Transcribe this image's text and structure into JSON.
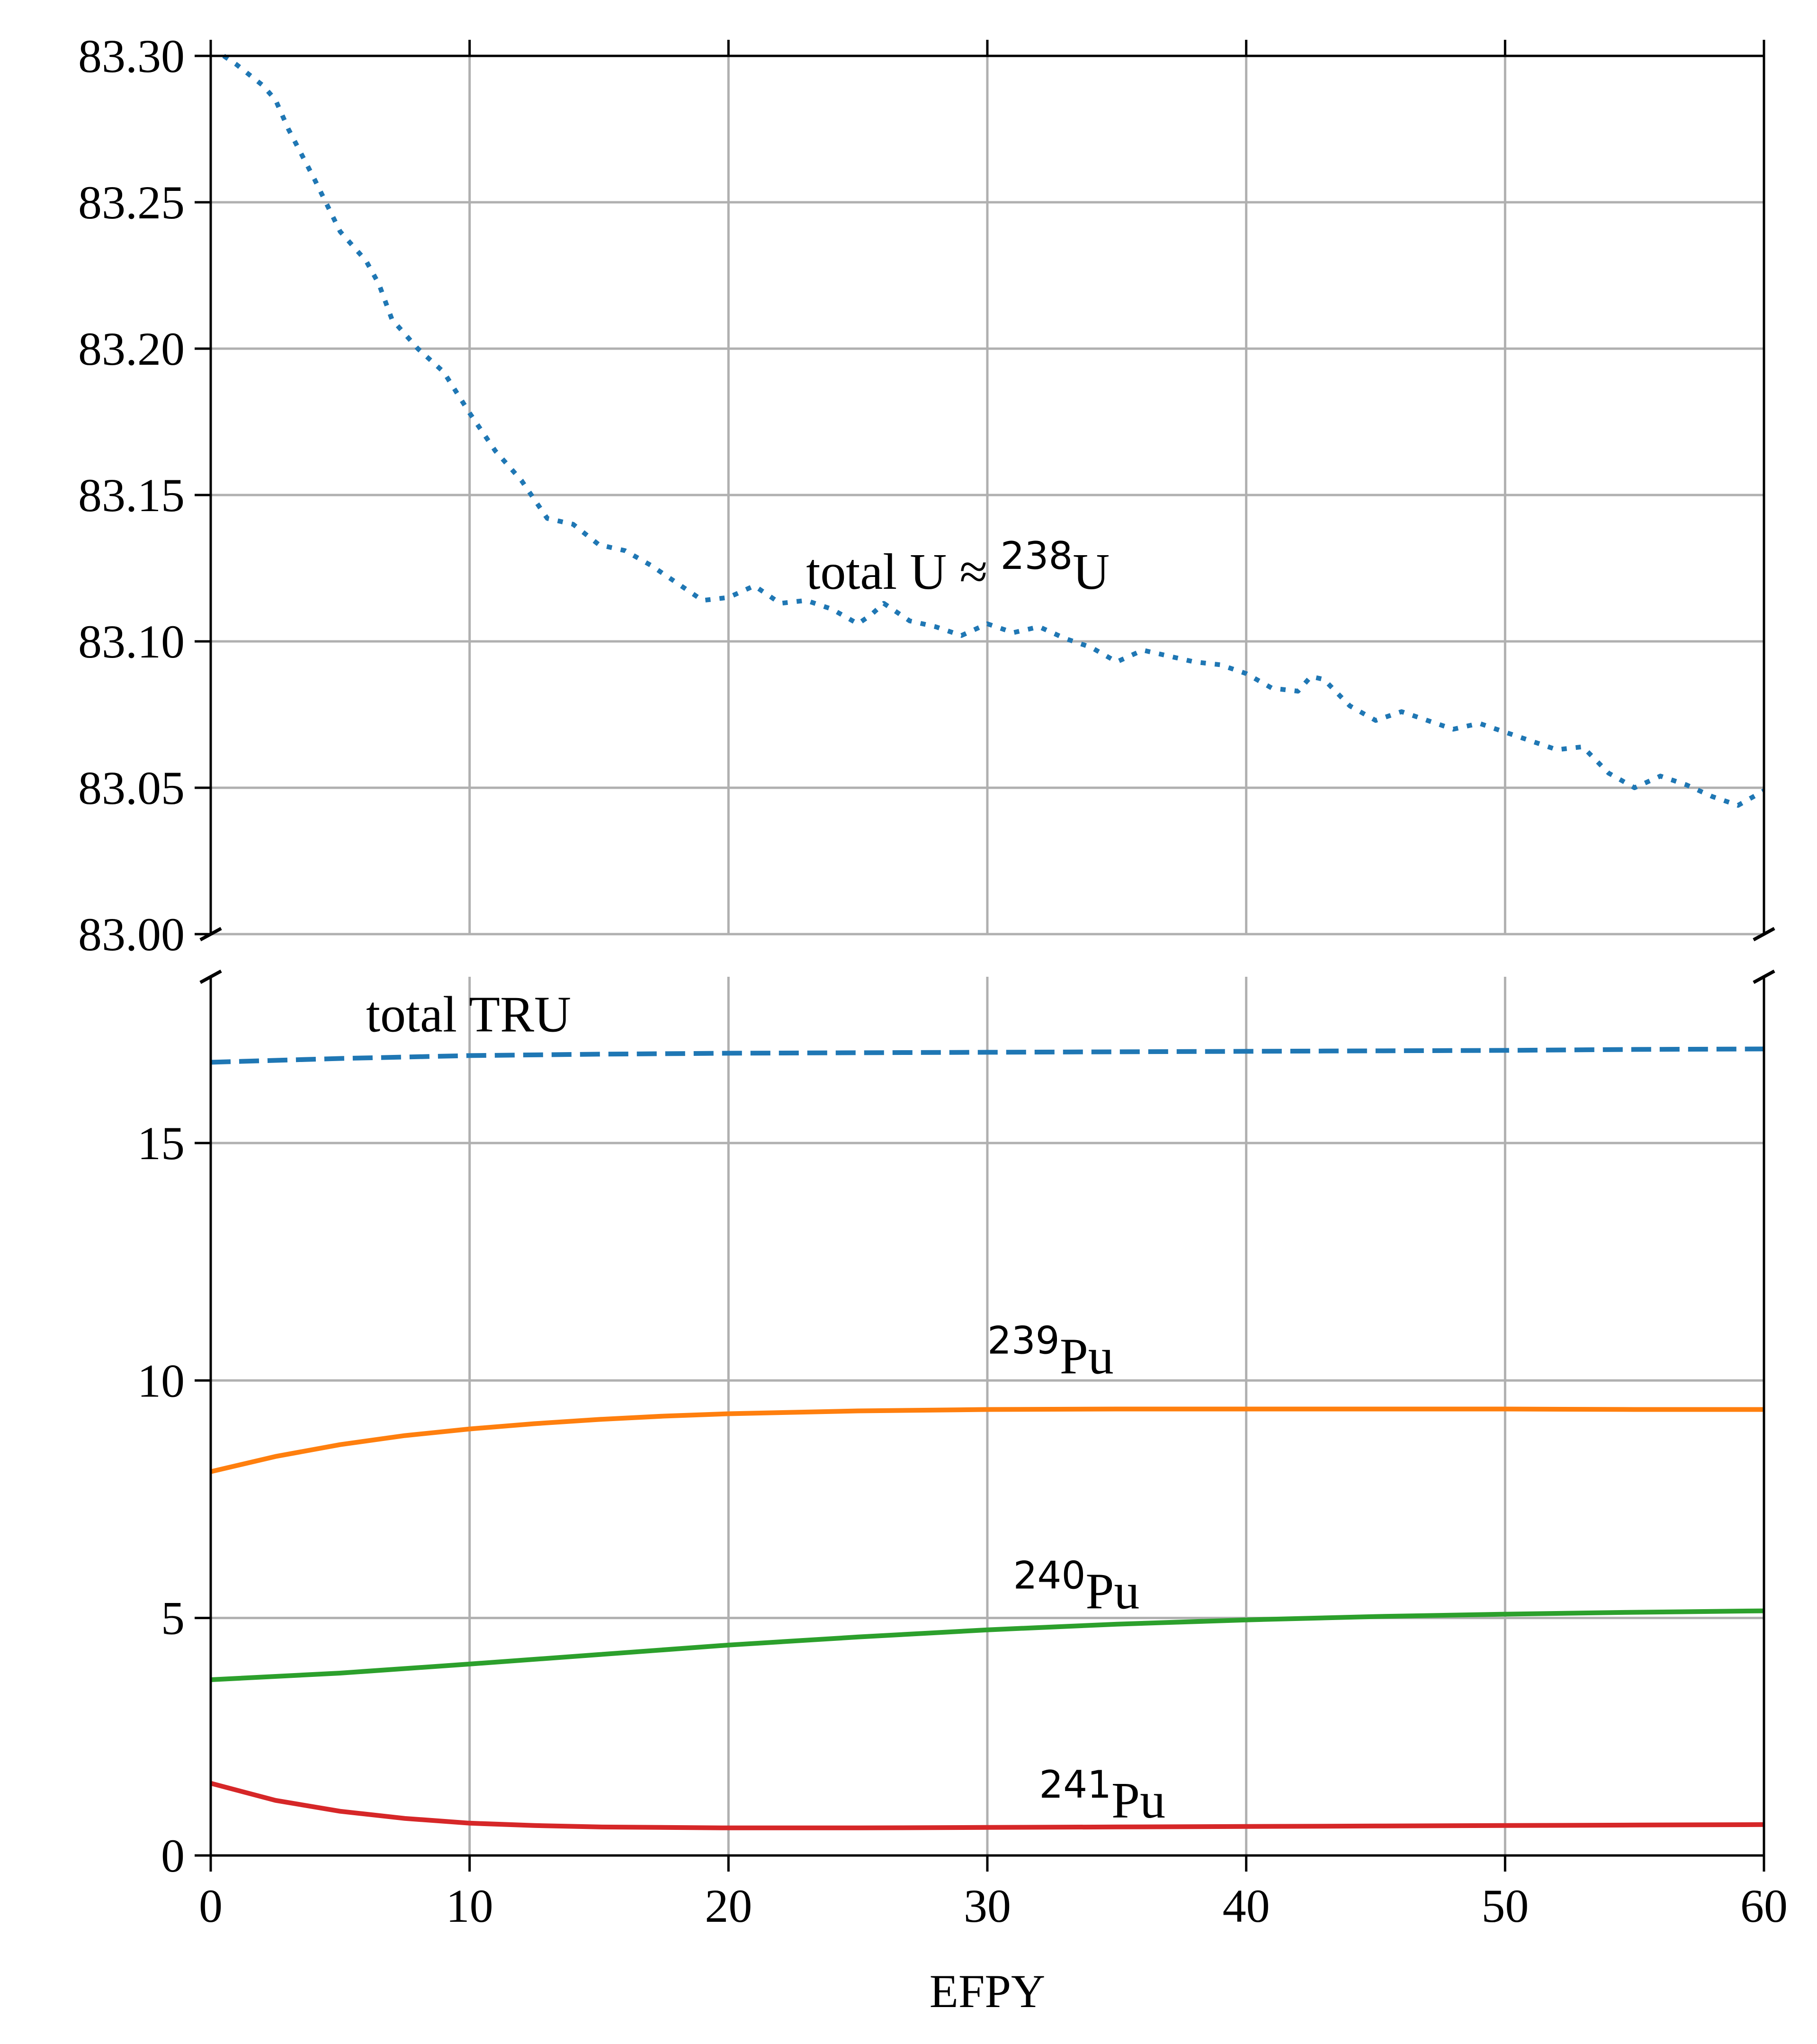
{
  "chart_data": [
    {
      "type": "line",
      "panel": "top",
      "xlabel": "",
      "ylabel": "",
      "xlim": [
        0,
        60
      ],
      "ylim": [
        83.0,
        83.3
      ],
      "grid": true,
      "yticks": [
        "83.00",
        "83.05",
        "83.10",
        "83.15",
        "83.20",
        "83.25",
        "83.30"
      ],
      "series": [
        {
          "name": "total U ≈ ²³⁸U",
          "label_main": "total U ≈ ",
          "label_sup": "238",
          "label_tail": "U",
          "label_at": [
            23,
            83.118
          ],
          "style": "dotted",
          "color": "#1f77b4",
          "x": [
            0.5,
            1,
            2,
            2.5,
            3,
            4,
            5,
            6,
            6.5,
            7,
            8,
            9,
            10,
            11,
            12,
            13,
            14,
            15,
            16,
            17,
            18,
            19,
            20,
            21,
            22,
            23,
            24,
            25,
            25.5,
            26,
            27,
            28,
            29,
            30,
            31,
            32,
            33,
            34,
            35,
            36,
            37,
            38,
            39,
            40,
            41,
            42,
            42.5,
            43,
            44,
            45,
            46,
            47,
            48,
            49,
            50,
            51,
            52,
            53,
            54,
            55,
            56,
            57,
            58,
            59,
            60
          ],
          "y": [
            83.3,
            83.297,
            83.29,
            83.285,
            83.275,
            83.258,
            83.24,
            83.23,
            83.222,
            83.21,
            83.2,
            83.192,
            83.178,
            83.165,
            83.155,
            83.142,
            83.14,
            83.133,
            83.131,
            83.126,
            83.12,
            83.114,
            83.115,
            83.119,
            83.113,
            83.114,
            83.111,
            83.106,
            83.109,
            83.113,
            83.107,
            83.105,
            83.102,
            83.106,
            83.103,
            83.105,
            83.101,
            83.098,
            83.093,
            83.097,
            83.095,
            83.093,
            83.092,
            83.089,
            83.084,
            83.083,
            83.088,
            83.087,
            83.078,
            83.073,
            83.076,
            83.073,
            83.07,
            83.072,
            83.069,
            83.066,
            83.063,
            83.064,
            83.055,
            83.05,
            83.054,
            83.051,
            83.047,
            83.044,
            83.049
          ]
        }
      ]
    },
    {
      "type": "line",
      "panel": "bottom",
      "xlabel": "EFPY",
      "ylabel": "",
      "xlim": [
        0,
        60
      ],
      "ylim": [
        0,
        18.5
      ],
      "grid": true,
      "xticks": [
        "0",
        "10",
        "20",
        "30",
        "40",
        "50",
        "60"
      ],
      "yticks": [
        "0",
        "5",
        "10",
        "15"
      ],
      "series": [
        {
          "name": "total TRU",
          "label_main": "total TRU",
          "label_sup": "",
          "label_tail": "",
          "label_at": [
            6,
            17.35
          ],
          "style": "dashed",
          "color": "#1f77b4",
          "x": [
            0,
            5,
            10,
            15,
            20,
            25,
            30,
            35,
            40,
            45,
            50,
            55,
            60
          ],
          "y": [
            16.7,
            16.78,
            16.84,
            16.87,
            16.89,
            16.9,
            16.91,
            16.92,
            16.93,
            16.94,
            16.95,
            16.97,
            16.98
          ]
        },
        {
          "name": "²³⁹Pu",
          "label_main": "",
          "label_sup": "239",
          "label_tail": "Pu",
          "label_at": [
            30,
            10.15
          ],
          "style": "solid",
          "color": "#ff7f0e",
          "x": [
            0,
            2.5,
            5,
            7.5,
            10,
            12.5,
            15,
            17.5,
            20,
            25,
            30,
            35,
            40,
            45,
            50,
            55,
            60
          ],
          "y": [
            8.08,
            8.4,
            8.65,
            8.84,
            8.98,
            9.09,
            9.18,
            9.25,
            9.3,
            9.36,
            9.39,
            9.4,
            9.4,
            9.4,
            9.4,
            9.39,
            9.39
          ]
        },
        {
          "name": "²⁴⁰Pu",
          "label_main": "",
          "label_sup": "240",
          "label_tail": "Pu",
          "label_at": [
            31,
            5.2
          ],
          "style": "solid",
          "color": "#2ca02c",
          "x": [
            0,
            5,
            10,
            15,
            20,
            25,
            30,
            35,
            40,
            45,
            50,
            55,
            60
          ],
          "y": [
            3.7,
            3.84,
            4.03,
            4.23,
            4.43,
            4.6,
            4.75,
            4.87,
            4.96,
            5.03,
            5.08,
            5.12,
            5.15
          ]
        },
        {
          "name": "²⁴¹Pu",
          "label_main": "",
          "label_sup": "241",
          "label_tail": "Pu",
          "label_at": [
            32,
            0.8
          ],
          "style": "solid",
          "color": "#d62728",
          "x": [
            0,
            2.5,
            5,
            7.5,
            10,
            12.5,
            15,
            20,
            25,
            30,
            35,
            40,
            45,
            50,
            55,
            60
          ],
          "y": [
            1.52,
            1.16,
            0.93,
            0.78,
            0.68,
            0.63,
            0.6,
            0.58,
            0.58,
            0.59,
            0.6,
            0.61,
            0.62,
            0.63,
            0.64,
            0.65
          ]
        }
      ]
    }
  ]
}
